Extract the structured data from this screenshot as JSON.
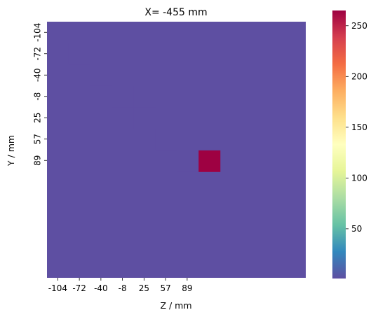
{
  "chart_data": {
    "type": "heatmap",
    "title": "X= -455 mm",
    "xlabel": "Z / mm",
    "ylabel": "Y / mm",
    "x_tick_labels": [
      "-104",
      "-72",
      "-40",
      "-8",
      "25",
      "57",
      "89"
    ],
    "y_tick_labels": [
      "-104",
      "-72",
      "-40",
      "-8",
      "25",
      "57",
      "89"
    ],
    "grid": false,
    "colormap": "Spectral_r",
    "colormap_stops": [
      "#5e4fa2",
      "#3288bd",
      "#66c2a5",
      "#abdda4",
      "#e6f598",
      "#ffffbf",
      "#fee08b",
      "#fdae61",
      "#f46d43",
      "#d53e4f",
      "#9e0142"
    ],
    "colorbar": {
      "range": [
        1,
        265
      ],
      "ticks": [
        50,
        100,
        150,
        200,
        250
      ]
    },
    "background_value": 1,
    "cells": [
      {
        "z": -104,
        "y": -104,
        "value": 1
      },
      {
        "z": -72,
        "y": -72,
        "value": 1
      },
      {
        "z": -40,
        "y": -40,
        "value": 1
      },
      {
        "z": -8,
        "y": -8,
        "value": 1
      },
      {
        "z": 25,
        "y": 25,
        "value": 1
      },
      {
        "z": 57,
        "y": 57,
        "value": 1
      },
      {
        "z": 89,
        "y": 89,
        "value": 1
      },
      {
        "z": 121,
        "y": 89,
        "value": 265
      }
    ]
  }
}
